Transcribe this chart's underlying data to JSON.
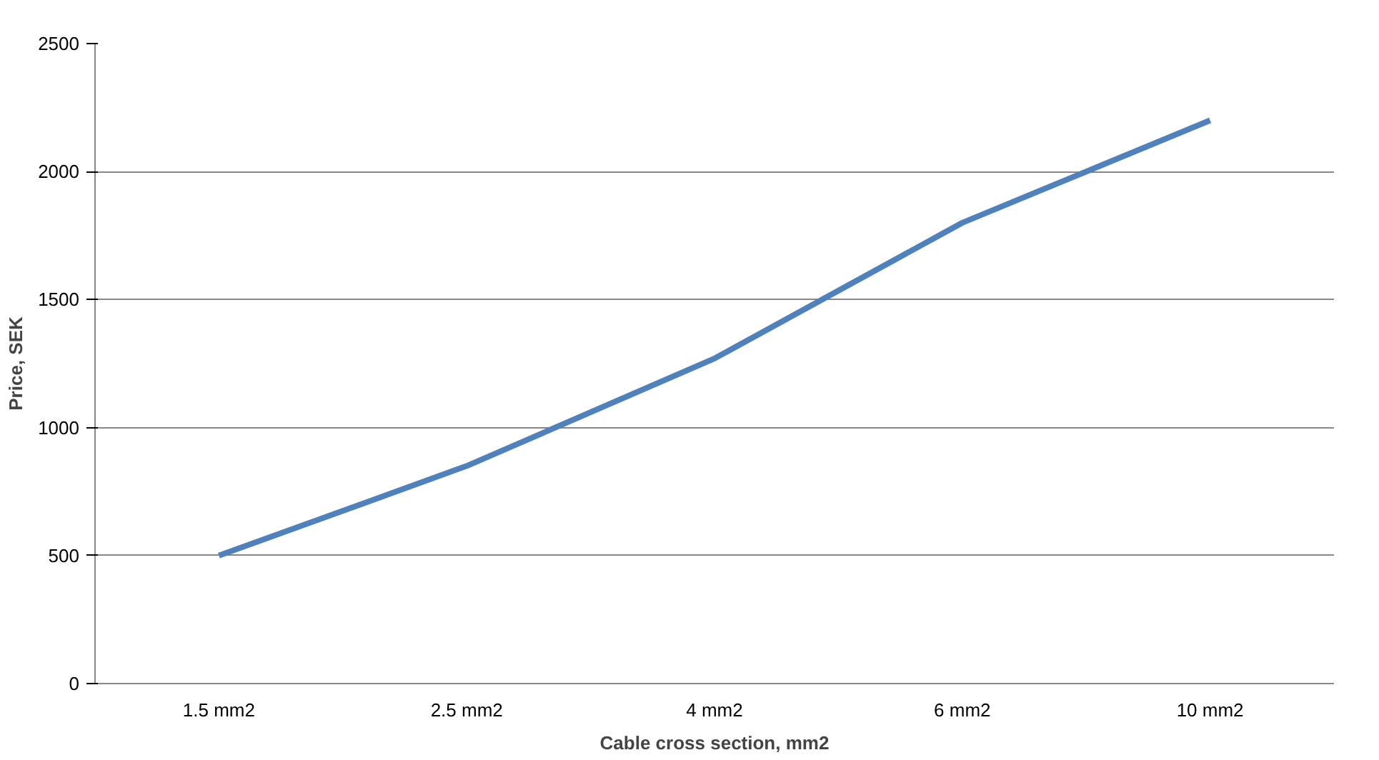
{
  "chart_data": {
    "type": "line",
    "xlabel": "Cable cross section, mm2",
    "ylabel": "Price, SEK",
    "categories": [
      "1.5 mm2",
      "2.5 mm2",
      "4 mm2",
      "6 mm2",
      "10 mm2"
    ],
    "series": [
      {
        "color": "#4f81bd",
        "values": [
          500,
          850,
          1270,
          1800,
          2200
        ]
      }
    ],
    "ylim": [
      0,
      2500
    ],
    "yticks": [
      0,
      500,
      1000,
      1500,
      2000,
      2500
    ],
    "grid": "y",
    "line_style": "solid"
  }
}
